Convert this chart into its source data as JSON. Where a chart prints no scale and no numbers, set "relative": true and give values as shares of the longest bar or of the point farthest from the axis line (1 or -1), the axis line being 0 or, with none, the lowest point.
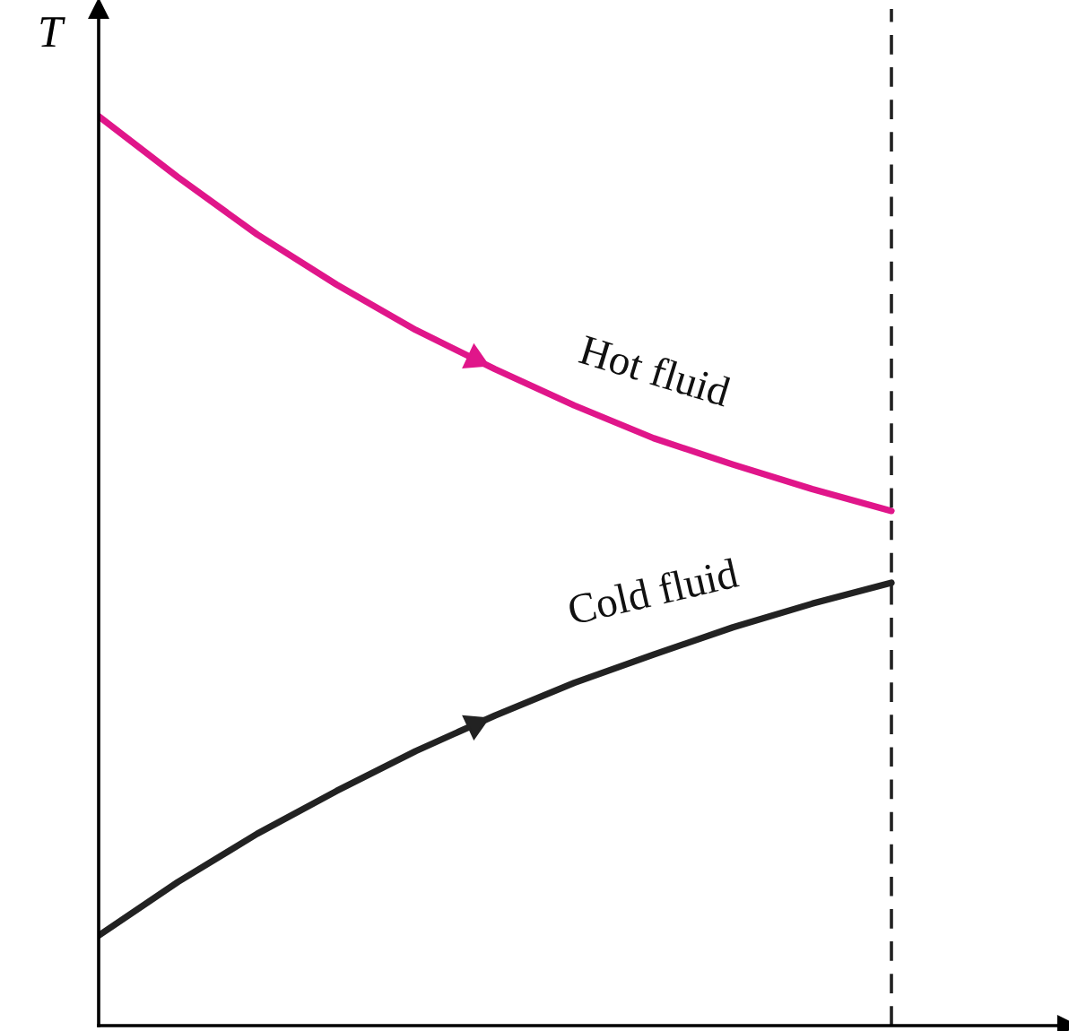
{
  "chart_data": {
    "type": "line",
    "relative": true,
    "ylabel": "T",
    "categories": [
      null,
      null,
      null,
      null,
      null,
      null,
      null,
      null,
      null,
      null,
      null
    ],
    "series": [
      {
        "name": "Hot fluid",
        "color": "#e0168a",
        "values": [
          1.0,
          0.933,
          0.87,
          0.815,
          0.765,
          0.722,
          0.682,
          0.646,
          0.617,
          0.59,
          0.566
        ]
      },
      {
        "name": "Cold fluid",
        "color": "#222222",
        "values": [
          0.099,
          0.158,
          0.211,
          0.258,
          0.302,
          0.341,
          0.377,
          0.408,
          0.438,
          0.464,
          0.487
        ]
      }
    ],
    "marker": "none",
    "line_style": "solid"
  }
}
